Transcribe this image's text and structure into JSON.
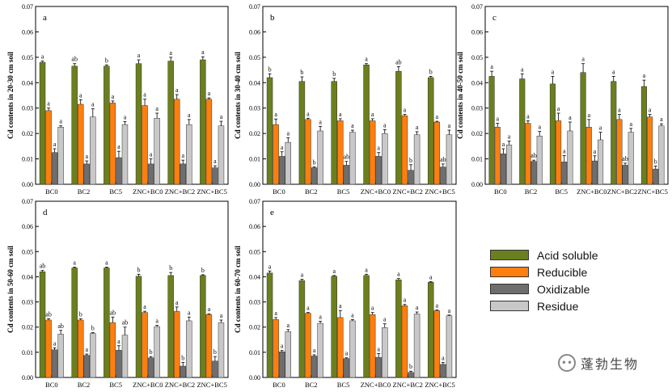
{
  "colors": {
    "series": [
      "#6b7f1e",
      "#ff7f0e",
      "#6e6e6e",
      "#c8c8c8"
    ],
    "axis": "#000000"
  },
  "legend": [
    {
      "label": "Acid soluble",
      "color": "#6b7f1e"
    },
    {
      "label": "Reducible",
      "color": "#ff7f0e"
    },
    {
      "label": "Oxidizable",
      "color": "#6e6e6e"
    },
    {
      "label": "Residue",
      "color": "#c8c8c8"
    }
  ],
  "watermark": {
    "text": "蓬勃生物",
    "icon": "wechat-icon"
  },
  "chart_data": [
    {
      "type": "bar",
      "panel": "a",
      "ylabel": "Cd contents in 20-30 cm soil",
      "ylim": [
        0,
        0.07
      ],
      "yticks": [
        "0.00",
        "0.01",
        "0.02",
        "0.03",
        "0.04",
        "0.05",
        "0.06",
        "0.07"
      ],
      "categories": [
        "BC0",
        "BC2",
        "BC5",
        "ZNC+BC0",
        "ZNC+BC2",
        "ZNC+BC5"
      ],
      "series": [
        {
          "name": "Acid soluble",
          "values": [
            0.048,
            0.0465,
            0.0465,
            0.0475,
            0.0485,
            0.049
          ],
          "errors": [
            0.0005,
            0.001,
            0.0005,
            0.0015,
            0.0015,
            0.0012
          ],
          "letters": [
            "a",
            "ab",
            "b",
            "a",
            "a",
            "a"
          ]
        },
        {
          "name": "Reducible",
          "values": [
            0.029,
            0.0315,
            0.032,
            0.031,
            0.0335,
            0.0335
          ],
          "errors": [
            0.001,
            0.0018,
            0.0008,
            0.0025,
            0.0018,
            0.0005
          ],
          "letters": [
            "a",
            "a",
            "a",
            "a",
            "a",
            "a"
          ]
        },
        {
          "name": "Oxidizable",
          "values": [
            0.0125,
            0.008,
            0.0105,
            0.008,
            0.008,
            0.0065
          ],
          "errors": [
            0.0015,
            0.0012,
            0.0025,
            0.002,
            0.0015,
            0.0008
          ],
          "letters": [
            "a",
            "a",
            "a",
            "a",
            "a",
            "a"
          ]
        },
        {
          "name": "Residue",
          "values": [
            0.0225,
            0.0265,
            0.0235,
            0.026,
            0.0235,
            0.023
          ],
          "errors": [
            0.0005,
            0.0032,
            0.0012,
            0.002,
            0.002,
            0.0018
          ],
          "letters": [
            "a",
            "a",
            "a",
            "a",
            "a",
            "a"
          ]
        }
      ]
    },
    {
      "type": "bar",
      "panel": "b",
      "ylabel": "Cd contents in 30-40 cm soil",
      "ylim": [
        0,
        0.07
      ],
      "yticks": [
        "0.00",
        "0.01",
        "0.02",
        "0.03",
        "0.04",
        "0.05",
        "0.06",
        "0.07"
      ],
      "categories": [
        "BC0",
        "BC2",
        "BC5",
        "ZNC+BC0",
        "ZNC+BC2",
        "ZNC+BC5"
      ],
      "series": [
        {
          "name": "Acid soluble",
          "values": [
            0.042,
            0.0405,
            0.0405,
            0.047,
            0.0445,
            0.042
          ],
          "errors": [
            0.0015,
            0.0018,
            0.0012,
            0.0005,
            0.0018,
            0.0005
          ],
          "letters": [
            "b",
            "b",
            "b",
            "a",
            "ab",
            "b"
          ]
        },
        {
          "name": "Reducible",
          "values": [
            0.0235,
            0.0255,
            0.025,
            0.025,
            0.027,
            0.0245
          ],
          "errors": [
            0.0022,
            0.0005,
            0.0008,
            0.0008,
            0.0005,
            0.0003
          ],
          "letters": [
            "a",
            "a",
            "a",
            "a",
            "a",
            "a"
          ]
        },
        {
          "name": "Oxidizable",
          "values": [
            0.011,
            0.0065,
            0.0075,
            0.011,
            0.0055,
            0.0068
          ],
          "errors": [
            0.0018,
            0.0003,
            0.0015,
            0.0015,
            0.0022,
            0.0012
          ],
          "letters": [
            "a",
            "b",
            "ab",
            "a",
            "b",
            "ab"
          ]
        },
        {
          "name": "Residue",
          "values": [
            0.0165,
            0.021,
            0.0205,
            0.02,
            0.0195,
            0.0195
          ],
          "errors": [
            0.0018,
            0.0018,
            0.0008,
            0.0015,
            0.0012,
            0.0018
          ],
          "letters": [
            "a",
            "a",
            "a",
            "a",
            "a",
            "a"
          ]
        }
      ]
    },
    {
      "type": "bar",
      "panel": "c",
      "ylabel": "Cd contents in 40-50 cm soil",
      "ylim": [
        0,
        0.07
      ],
      "yticks": [
        "0.00",
        "0.01",
        "0.02",
        "0.03",
        "0.04",
        "0.05",
        "0.06",
        "0.07"
      ],
      "categories": [
        "BC0",
        "BC2",
        "BC5",
        "ZNC+BC0",
        "ZNC+BC2",
        "ZNC+BC5"
      ],
      "series": [
        {
          "name": "Acid soluble",
          "values": [
            0.0425,
            0.0415,
            0.0395,
            0.044,
            0.0405,
            0.0385
          ],
          "errors": [
            0.002,
            0.002,
            0.003,
            0.0035,
            0.002,
            0.0025
          ],
          "letters": [
            "a",
            "a",
            "a",
            "a",
            "a",
            "a"
          ]
        },
        {
          "name": "Reducible",
          "values": [
            0.0225,
            0.024,
            0.025,
            0.0225,
            0.0255,
            0.0265
          ],
          "errors": [
            0.0015,
            0.001,
            0.003,
            0.003,
            0.002,
            0.001
          ],
          "letters": [
            "a",
            "a",
            "a",
            "a",
            "a",
            "a"
          ]
        },
        {
          "name": "Oxidizable",
          "values": [
            0.012,
            0.009,
            0.0088,
            0.0092,
            0.0075,
            0.006
          ],
          "errors": [
            0.002,
            0.0005,
            0.0025,
            0.002,
            0.0008,
            0.0012
          ],
          "letters": [
            "a",
            "ab",
            "a",
            "a",
            "ab",
            "b"
          ]
        },
        {
          "name": "Residue",
          "values": [
            0.0155,
            0.019,
            0.021,
            0.0175,
            0.0205,
            0.023
          ],
          "errors": [
            0.0015,
            0.0018,
            0.0035,
            0.003,
            0.0015,
            0.0008
          ],
          "letters": [
            "a",
            "a",
            "a",
            "a",
            "a",
            "a"
          ]
        }
      ]
    },
    {
      "type": "bar",
      "panel": "d",
      "ylabel": "Cd contents in 50-60 cm soil",
      "ylim": [
        0,
        0.07
      ],
      "yticks": [
        "0.00",
        "0.01",
        "0.02",
        "0.03",
        "0.04",
        "0.05",
        "0.06",
        "0.07"
      ],
      "categories": [
        "BC0",
        "BC2",
        "BC5",
        "ZNC+BC0",
        "ZNC+BC2",
        "ZNC+BC5"
      ],
      "series": [
        {
          "name": "Acid soluble",
          "values": [
            0.042,
            0.0435,
            0.0435,
            0.0402,
            0.0405,
            0.0405
          ],
          "errors": [
            0.0005,
            0.0003,
            0.0003,
            0.0008,
            0.0012,
            0.0003
          ],
          "letters": [
            "ab",
            "a",
            "a",
            "b",
            "b",
            "b"
          ]
        },
        {
          "name": "Reducible",
          "values": [
            0.0228,
            0.0228,
            0.0218,
            0.0258,
            0.0262,
            0.025
          ],
          "errors": [
            0.0005,
            0.0005,
            0.0022,
            0.0005,
            0.0018,
            0.0003
          ],
          "letters": [
            "ab",
            "b",
            "ab",
            "a",
            "a",
            "a"
          ]
        },
        {
          "name": "Oxidizable",
          "values": [
            0.011,
            0.0088,
            0.0108,
            0.0078,
            0.0045,
            0.0065
          ],
          "errors": [
            0.0008,
            0.0005,
            0.0018,
            0.0005,
            0.0015,
            0.0018
          ],
          "letters": [
            "a",
            "a",
            "a",
            "b",
            "b",
            "b"
          ]
        },
        {
          "name": "Residue",
          "values": [
            0.0172,
            0.0175,
            0.0168,
            0.0202,
            0.0225,
            0.0218
          ],
          "errors": [
            0.0015,
            0.0003,
            0.0032,
            0.0005,
            0.0015,
            0.001
          ],
          "letters": [
            "ab",
            "b",
            "ab",
            "a",
            "a",
            "a"
          ]
        }
      ]
    },
    {
      "type": "bar",
      "panel": "e",
      "ylabel": "Cd contents in 60-70 cm soil",
      "ylim": [
        0,
        0.07
      ],
      "yticks": [
        "0.00",
        "0.01",
        "0.02",
        "0.03",
        "0.04",
        "0.05",
        "0.06",
        "0.07"
      ],
      "categories": [
        "BC0",
        "BC2",
        "BC5",
        "ZNC+BC0",
        "ZNC+BC2",
        "ZNC+BC5"
      ],
      "series": [
        {
          "name": "Acid soluble",
          "values": [
            0.0415,
            0.0385,
            0.0402,
            0.0405,
            0.0388,
            0.0378
          ],
          "errors": [
            0.0008,
            0.0005,
            0.0003,
            0.0005,
            0.0005,
            0.0003
          ],
          "letters": [
            "a",
            "a",
            "a",
            "a",
            "a",
            "a"
          ]
        },
        {
          "name": "Reducible",
          "values": [
            0.023,
            0.0255,
            0.0238,
            0.025,
            0.0285,
            0.0265
          ],
          "errors": [
            0.0008,
            0.0003,
            0.0028,
            0.0008,
            0.0005,
            0.0003
          ],
          "letters": [
            "a",
            "a",
            "a",
            "a",
            "a",
            "a"
          ]
        },
        {
          "name": "Oxidizable",
          "values": [
            0.0102,
            0.0085,
            0.0075,
            0.008,
            0.002,
            0.0052
          ],
          "errors": [
            0.0005,
            0.0005,
            0.0003,
            0.0015,
            0.0005,
            0.0008
          ],
          "letters": [
            "a",
            "a",
            "a",
            "a",
            "b",
            "a"
          ]
        },
        {
          "name": "Residue",
          "values": [
            0.0182,
            0.0215,
            0.0225,
            0.0198,
            0.0252,
            0.0245
          ],
          "errors": [
            0.0008,
            0.0008,
            0.0005,
            0.0015,
            0.0008,
            0.0003
          ],
          "letters": [
            "a",
            "a",
            "a",
            "a",
            "a",
            "a"
          ]
        }
      ]
    }
  ]
}
